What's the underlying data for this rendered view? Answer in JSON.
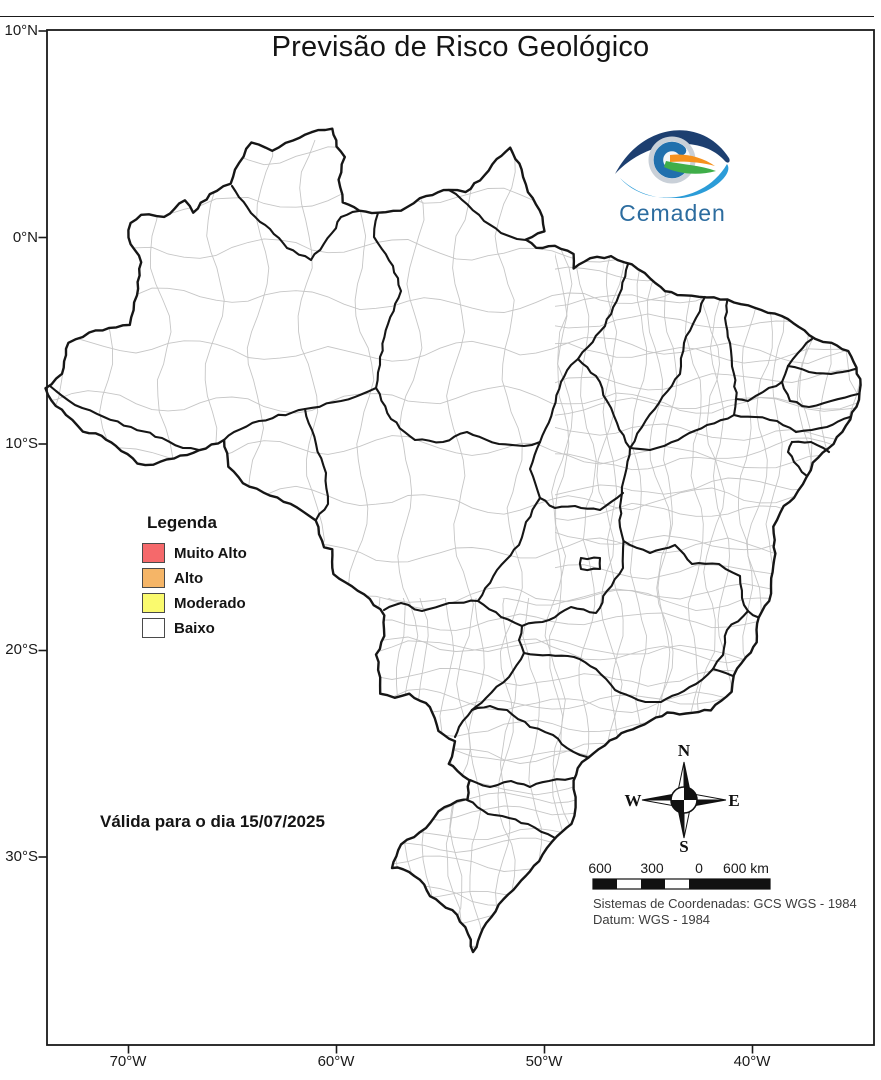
{
  "title": "Previsão de Risco Geológico",
  "logo": {
    "wordmark": "Cemaden",
    "colors": {
      "navy": "#1d3f70",
      "light_blue": "#2b9cd8",
      "c_blue": "#2170ad",
      "green": "#3fae49",
      "orange": "#f6921e",
      "text": "#2c6c9f"
    }
  },
  "axes": {
    "lat_labels": [
      "10°N",
      "0°N",
      "10°S",
      "20°S",
      "30°S"
    ],
    "lon_labels": [
      "70°W",
      "60°W",
      "50°W",
      "40°W"
    ]
  },
  "legend": {
    "title": "Legenda",
    "items": [
      {
        "label": "Muito Alto",
        "color": "#f5696b"
      },
      {
        "label": "Alto",
        "color": "#f5b567"
      },
      {
        "label": "Moderado",
        "color": "#fafa6e"
      },
      {
        "label": "Baixo",
        "color": "#ffffff"
      }
    ]
  },
  "validity": "Válida para o dia 15/07/2025",
  "compass": {
    "n": "N",
    "s": "S",
    "e": "E",
    "w": "W"
  },
  "scalebar": {
    "labels": [
      "600",
      "300",
      "0",
      "600 km"
    ]
  },
  "footer": {
    "line1": "Sistemas de Coordenadas: GCS WGS - 1984",
    "line2": "Datum: WGS - 1984"
  },
  "map": {
    "fill": "#ffffff",
    "state_border_color": "#161616",
    "municipality_border_color": "#c6c6c6",
    "frame_color": "#1a1a1a"
  }
}
